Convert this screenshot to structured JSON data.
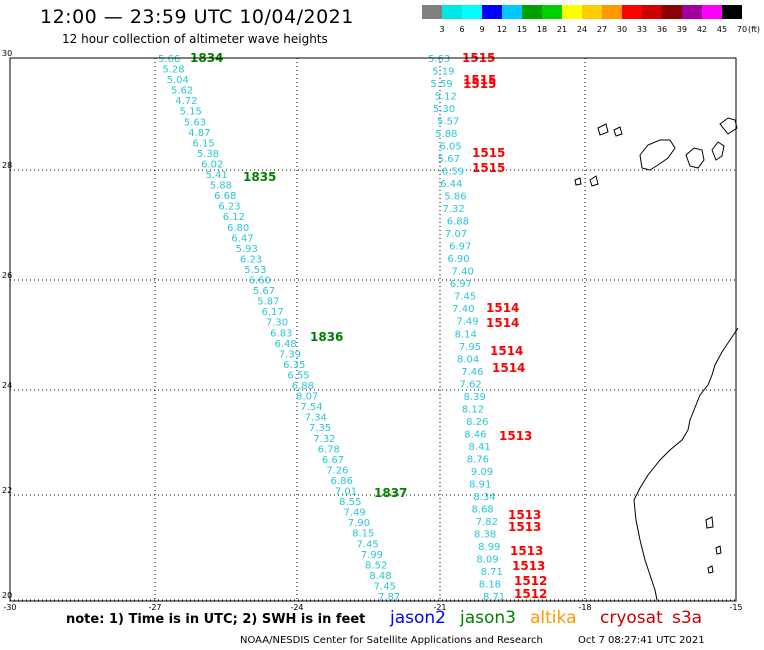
{
  "title": "12:00 — 23:59 UTC 10/04/2021",
  "subtitle": "12 hour collection of altimeter wave heights",
  "scale": {
    "labels": [
      "3",
      "6",
      "9",
      "12",
      "15",
      "18",
      "21",
      "24",
      "27",
      "30",
      "33",
      "36",
      "39",
      "42",
      "45",
      "70"
    ],
    "colors": [
      "#808080",
      "#00e6e6",
      "#00ffff",
      "#0000ff",
      "#00c8ff",
      "#00a000",
      "#00d000",
      "#ffff00",
      "#ffcc00",
      "#ff9900",
      "#ff0000",
      "#cc0000",
      "#8b0000",
      "#a000a0",
      "#ff00ff",
      "#000000"
    ],
    "unit": "(ft)"
  },
  "axes": {
    "lat_ticks": [
      "30",
      "28",
      "26",
      "24",
      "22",
      "20"
    ],
    "lon_ticks": [
      "-30",
      "-27",
      "-24",
      "-21",
      "-18",
      "-15"
    ]
  },
  "tracks": [
    {
      "name": "left",
      "color": "#29c6dc",
      "values": [
        "5.66",
        "5.28",
        "5.04",
        "5.62",
        "4.72",
        "5.15",
        "5.63",
        "4.87",
        "6.15",
        "5.38",
        "6.02",
        "5.41",
        "5.88",
        "6.68",
        "6.23",
        "6.12",
        "6.80",
        "6.47",
        "5.93",
        "6.23",
        "5.53",
        "6.60",
        "5.67",
        "5.87",
        "6.17",
        "7.30",
        "6.83",
        "6.48",
        "7.39",
        "6.35",
        "6.55",
        "6.88",
        "8.07",
        "7.54",
        "7.34",
        "7.35",
        "7.32",
        "6.78",
        "6.67",
        "7.26",
        "6.86",
        "7.01",
        "8.55",
        "7.49",
        "7.90",
        "8.15",
        "7.45",
        "7.99",
        "8.52",
        "8.48",
        "7.45",
        "7.87"
      ],
      "passes": [
        {
          "label": "1834",
          "color": "#008000"
        },
        {
          "label": "1835",
          "color": "#008000"
        },
        {
          "label": "1836",
          "color": "#008000"
        },
        {
          "label": "1837",
          "color": "#008000"
        }
      ]
    },
    {
      "name": "right",
      "color": "#29c6dc",
      "values": [
        "5.63",
        "5.19",
        "5.59",
        "5.12",
        "5.30",
        "5.57",
        "5.88",
        "6.05",
        "5.67",
        "6.59",
        "6.44",
        "5.86",
        "7.32",
        "6.88",
        "7.07",
        "6.97",
        "6.90",
        "7.40",
        "6.97",
        "7.45",
        "7.40",
        "7.49",
        "8.14",
        "7.95",
        "8.04",
        "7.46",
        "7.62",
        "8.39",
        "8.12",
        "8.26",
        "8.46",
        "8.41",
        "8.76",
        "9.09",
        "8.91",
        "8.34",
        "8.68",
        "7.82",
        "8.38",
        "8.99",
        "8.09",
        "8.71",
        "8.18",
        "8.71"
      ],
      "passes": [
        {
          "label": "1515",
          "color": "#ff0000"
        },
        {
          "label": "1515",
          "color": "#ff0000"
        },
        {
          "label": "1515",
          "color": "#ff0000"
        },
        {
          "label": "1515",
          "color": "#ff0000"
        },
        {
          "label": "1515",
          "color": "#ff0000"
        },
        {
          "label": "1514",
          "color": "#ff0000"
        },
        {
          "label": "1514",
          "color": "#ff0000"
        },
        {
          "label": "1514",
          "color": "#ff0000"
        },
        {
          "label": "1514",
          "color": "#ff0000"
        },
        {
          "label": "1513",
          "color": "#ff0000"
        },
        {
          "label": "1513",
          "color": "#ff0000"
        },
        {
          "label": "1513",
          "color": "#ff0000"
        },
        {
          "label": "1513",
          "color": "#ff0000"
        },
        {
          "label": "1513",
          "color": "#ff0000"
        },
        {
          "label": "1512",
          "color": "#ff0000"
        },
        {
          "label": "1512",
          "color": "#ff0000"
        }
      ]
    }
  ],
  "note": "note: 1) Time is in UTC; 2) SWH is in feet",
  "satellites": [
    {
      "label": "jason2",
      "color": "#0000ff"
    },
    {
      "label": "jason3",
      "color": "#008000"
    },
    {
      "label": "altika",
      "color": "#ff9900"
    },
    {
      "label": "cryosat",
      "color": "#cc0000"
    },
    {
      "label": "s3a",
      "color": "#cc0000"
    }
  ],
  "credit": "NOAA/NESDIS Center for Satellite Applications and Research",
  "timestamp": "Oct  7 08:27:41 UTC 2021"
}
